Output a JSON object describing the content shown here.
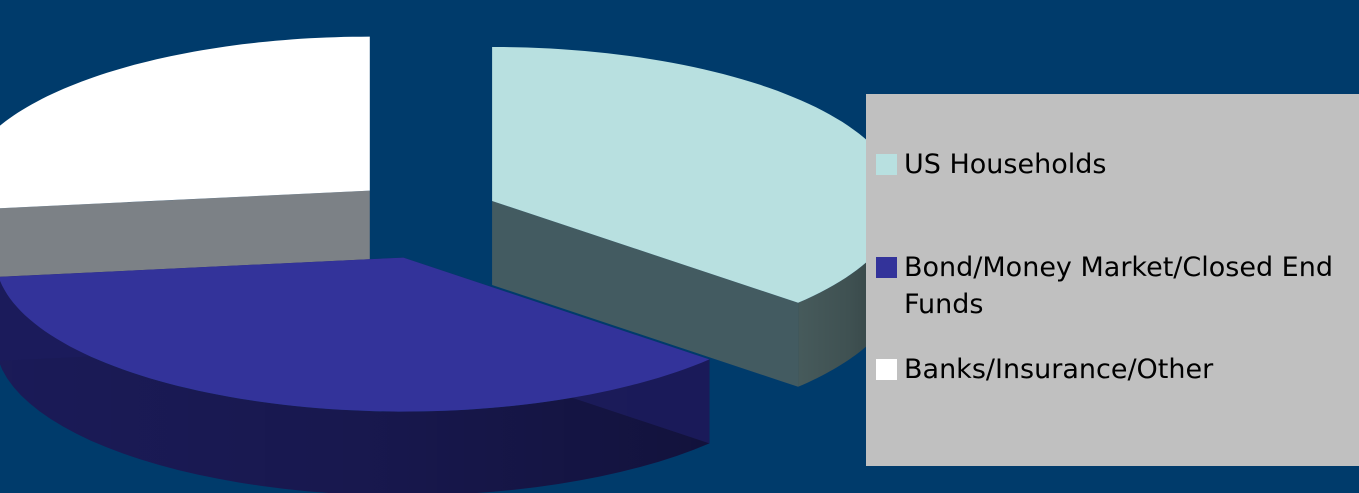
{
  "chart_data": {
    "type": "pie",
    "style": "3d-exploded",
    "title": "",
    "legend_position": "right",
    "slices": [
      {
        "label": "US Households",
        "value": 36.5,
        "color": "#b8e0e0",
        "side_color": "#4a5f60"
      },
      {
        "label": "Bond/Money Market/Closed End Funds",
        "value": 36.5,
        "color": "#33339a",
        "side_color": "#1c1c5c"
      },
      {
        "label": "Banks/Insurance/Other",
        "value": 27.0,
        "color": "#ffffff",
        "side_color": "#8a8a8a"
      }
    ]
  },
  "colors": {
    "background": "#003b6b",
    "legend_background": "#c0c0c0",
    "legend_text": "#000000"
  }
}
